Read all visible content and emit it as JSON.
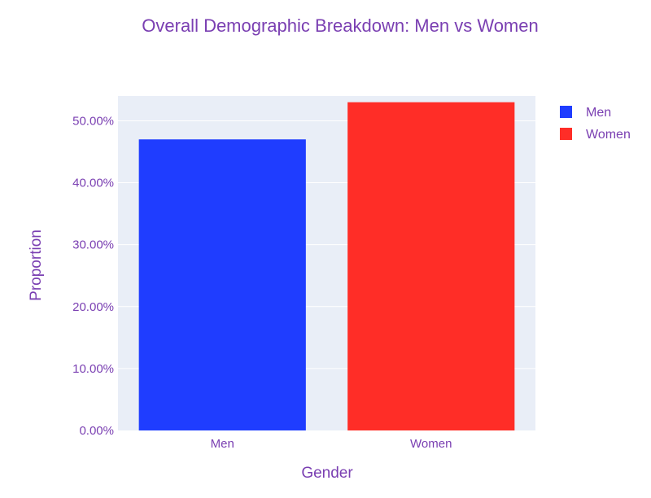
{
  "chart_data": {
    "type": "bar",
    "title": "Overall Demographic Breakdown: Men vs Women",
    "xlabel": "Gender",
    "ylabel": "Proportion",
    "categories": [
      "Men",
      "Women"
    ],
    "values": [
      0.47,
      0.53
    ],
    "bar_colors": [
      "#1f3dff",
      "#ff2d27"
    ],
    "ylim": [
      0,
      0.54
    ],
    "yticks": [
      0,
      0.1,
      0.2,
      0.3,
      0.4,
      0.5
    ],
    "ytick_labels": [
      "0.00%",
      "10.00%",
      "20.00%",
      "30.00%",
      "40.00%",
      "50.00%"
    ],
    "grid": true,
    "legend": {
      "placement": "top-right",
      "entries": [
        {
          "label": "Men",
          "color": "#1f3dff"
        },
        {
          "label": "Women",
          "color": "#ff2d27"
        }
      ]
    },
    "colors": {
      "text": "#7a3fb2",
      "plot_background": "#e9eef7",
      "gridline": "#ffffff"
    }
  }
}
